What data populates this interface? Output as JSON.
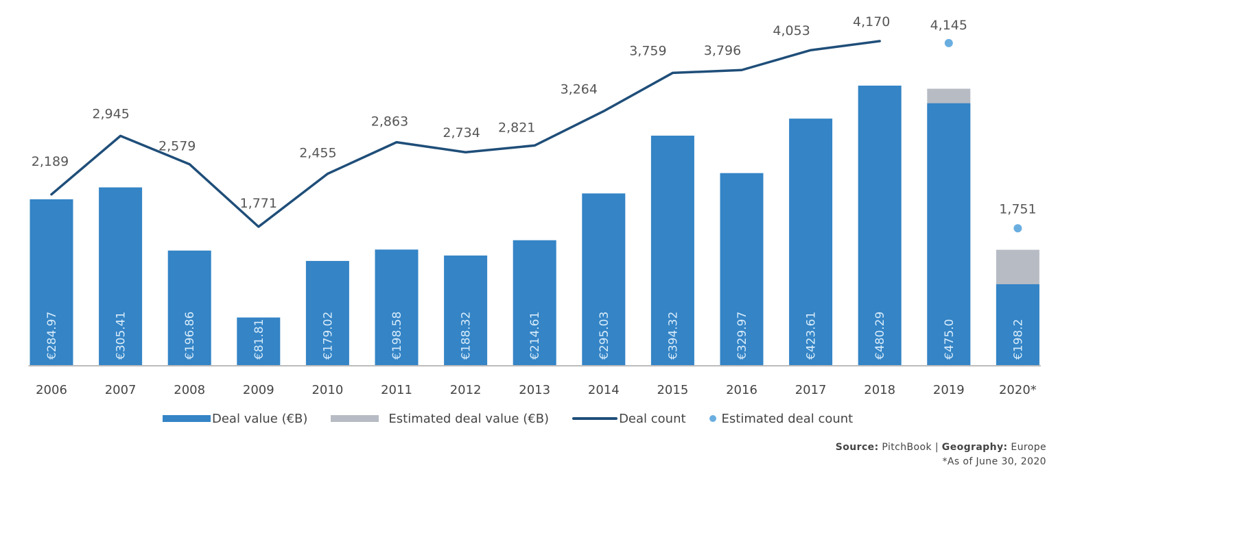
{
  "chart_data": {
    "type": "bar",
    "title": "",
    "xlabel": "",
    "ylabel": "",
    "categories": [
      "2006",
      "2007",
      "2008",
      "2009",
      "2010",
      "2011",
      "2012",
      "2013",
      "2014",
      "2015",
      "2016",
      "2017",
      "2018",
      "2019",
      "2020*"
    ],
    "series": [
      {
        "name": "Deal value (€B)",
        "kind": "bar",
        "color": "#3484c6",
        "values": [
          284.97,
          305.41,
          196.86,
          81.81,
          179.02,
          198.58,
          188.32,
          214.61,
          295.03,
          394.32,
          329.97,
          423.61,
          480.29,
          450.0,
          139.0
        ]
      },
      {
        "name": "Estimated deal value (€B)",
        "kind": "bar-stacked-total",
        "color": "#b7bcc4",
        "values": [
          null,
          null,
          null,
          null,
          null,
          null,
          null,
          null,
          null,
          null,
          null,
          null,
          null,
          475.0,
          198.2
        ]
      },
      {
        "name": "Deal count",
        "kind": "line",
        "color": "#1f4e79",
        "values": [
          2189,
          2945,
          2579,
          1771,
          2455,
          2863,
          2734,
          2821,
          3264,
          3759,
          3796,
          4053,
          4170,
          null,
          null
        ]
      },
      {
        "name": "Estimated deal count",
        "kind": "scatter",
        "color": "#6aaee0",
        "values": [
          null,
          null,
          null,
          null,
          null,
          null,
          null,
          null,
          null,
          null,
          null,
          null,
          null,
          4145,
          1751
        ]
      }
    ],
    "bar_labels": [
      "€284.97",
      "€305.41",
      "€196.86",
      "€81.81",
      "€179.02",
      "€198.58",
      "€188.32",
      "€214.61",
      "€295.03",
      "€394.32",
      "€329.97",
      "€423.61",
      "€480.29",
      "€475.0",
      "€198.2"
    ],
    "count_labels": [
      "2,189",
      "2,945",
      "2,579",
      "1,771",
      "2,455",
      "2,863",
      "2,734",
      "2,821",
      "3,264",
      "3,759",
      "3,796",
      "4,053",
      "4,170",
      "4,145",
      "1,751"
    ],
    "bar_ylim": [
      0,
      480.29
    ],
    "count_ylim": [
      1771,
      4170
    ],
    "grid": false,
    "legend_position": "bottom"
  },
  "legend": {
    "deal_value": "Deal value (€B)",
    "estimated_deal_value": "Estimated deal value (€B)",
    "deal_count": "Deal count",
    "estimated_deal_count": "Estimated deal count"
  },
  "source": {
    "source_label": "Source:",
    "source_value": "PitchBook",
    "separator": "|",
    "geography_label": "Geography:",
    "geography_value": "Europe",
    "footnote": "*As of June 30, 2020"
  }
}
